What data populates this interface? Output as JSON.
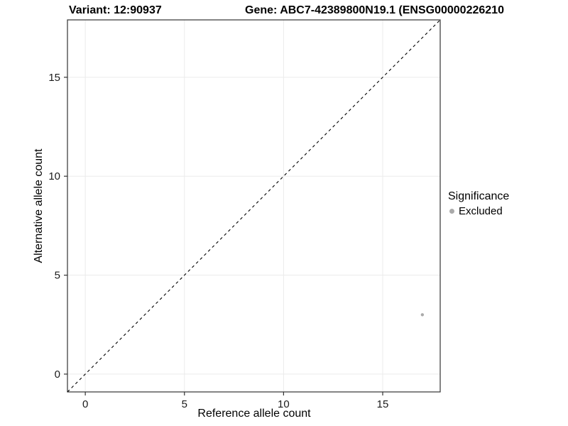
{
  "chart_data": {
    "type": "scatter",
    "title_variant": "Variant: 12:90937",
    "title_gene": "Gene: ABC7-42389800N19.1 (ENSG00000226210",
    "xlabel": "Reference allele count",
    "ylabel": "Alternative allele count",
    "xlim": [
      -0.9,
      17.9
    ],
    "ylim": [
      -0.9,
      17.9
    ],
    "xticks": [
      0,
      5,
      10,
      15
    ],
    "yticks": [
      0,
      5,
      10,
      15
    ],
    "grid": true,
    "grid_color": "#ebebeb",
    "panel_border_color": "#333333",
    "identity_line": {
      "style": "dashed",
      "color": "#000000",
      "from": [
        -0.9,
        -0.9
      ],
      "to": [
        17.9,
        17.9
      ]
    },
    "points": [
      {
        "x": 17,
        "y": 3,
        "series": "Excluded",
        "color": "#aaaaaa"
      }
    ],
    "point_color": "#aaaaaa",
    "legend": {
      "title": "Significance",
      "position": "right",
      "entries": [
        {
          "label": "Excluded",
          "color": "#aaaaaa"
        }
      ]
    }
  }
}
